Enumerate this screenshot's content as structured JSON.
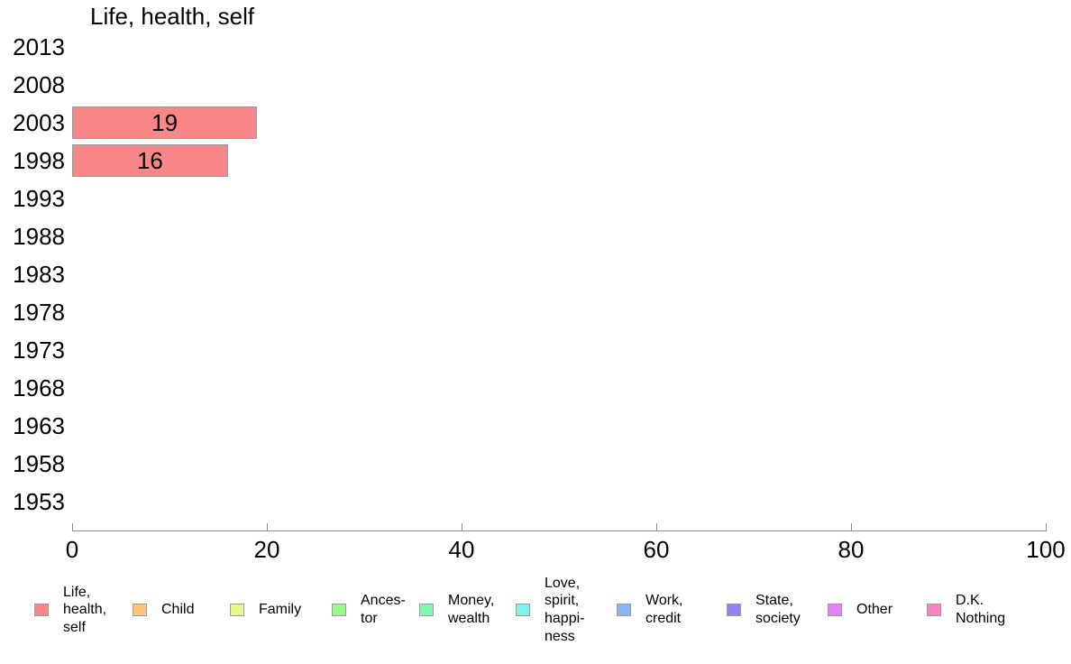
{
  "chart_data": {
    "type": "bar",
    "orientation": "horizontal",
    "title": "Life, health, self",
    "categories": [
      "2013",
      "2008",
      "2003",
      "1998",
      "1993",
      "1988",
      "1983",
      "1978",
      "1973",
      "1968",
      "1963",
      "1958",
      "1953"
    ],
    "values": [
      null,
      null,
      19,
      16,
      null,
      null,
      null,
      null,
      null,
      null,
      null,
      null,
      null
    ],
    "bar_labels": [
      "",
      "",
      "19",
      "16",
      "",
      "",
      "",
      "",
      "",
      "",
      "",
      "",
      ""
    ],
    "xlim": [
      0,
      100
    ],
    "xticks": [
      0,
      20,
      40,
      60,
      80,
      100
    ],
    "grid": false,
    "bar_color": "#fa8787",
    "bar_border_color": "#9b9b9b",
    "axis_color": "#8c8c8c",
    "legend_position": "bottom",
    "legend": [
      {
        "label": "Life,\nhealth,\nself",
        "color": "#fa8787"
      },
      {
        "label": "Child",
        "color": "#fbc37e"
      },
      {
        "label": "Family",
        "color": "#e7f98b"
      },
      {
        "label": "Ances-\ntor",
        "color": "#97f88b"
      },
      {
        "label": "Money,\nwealth",
        "color": "#85f5b2"
      },
      {
        "label": "Love,\nspirit,\nhappi-\nness",
        "color": "#82f2f0"
      },
      {
        "label": "Work,\ncredit",
        "color": "#8cb3f2"
      },
      {
        "label": "State,\nsociety",
        "color": "#9183f0"
      },
      {
        "label": "Other",
        "color": "#e382f5"
      },
      {
        "label": "D.K.\nNothing",
        "color": "#f784c1"
      }
    ]
  }
}
